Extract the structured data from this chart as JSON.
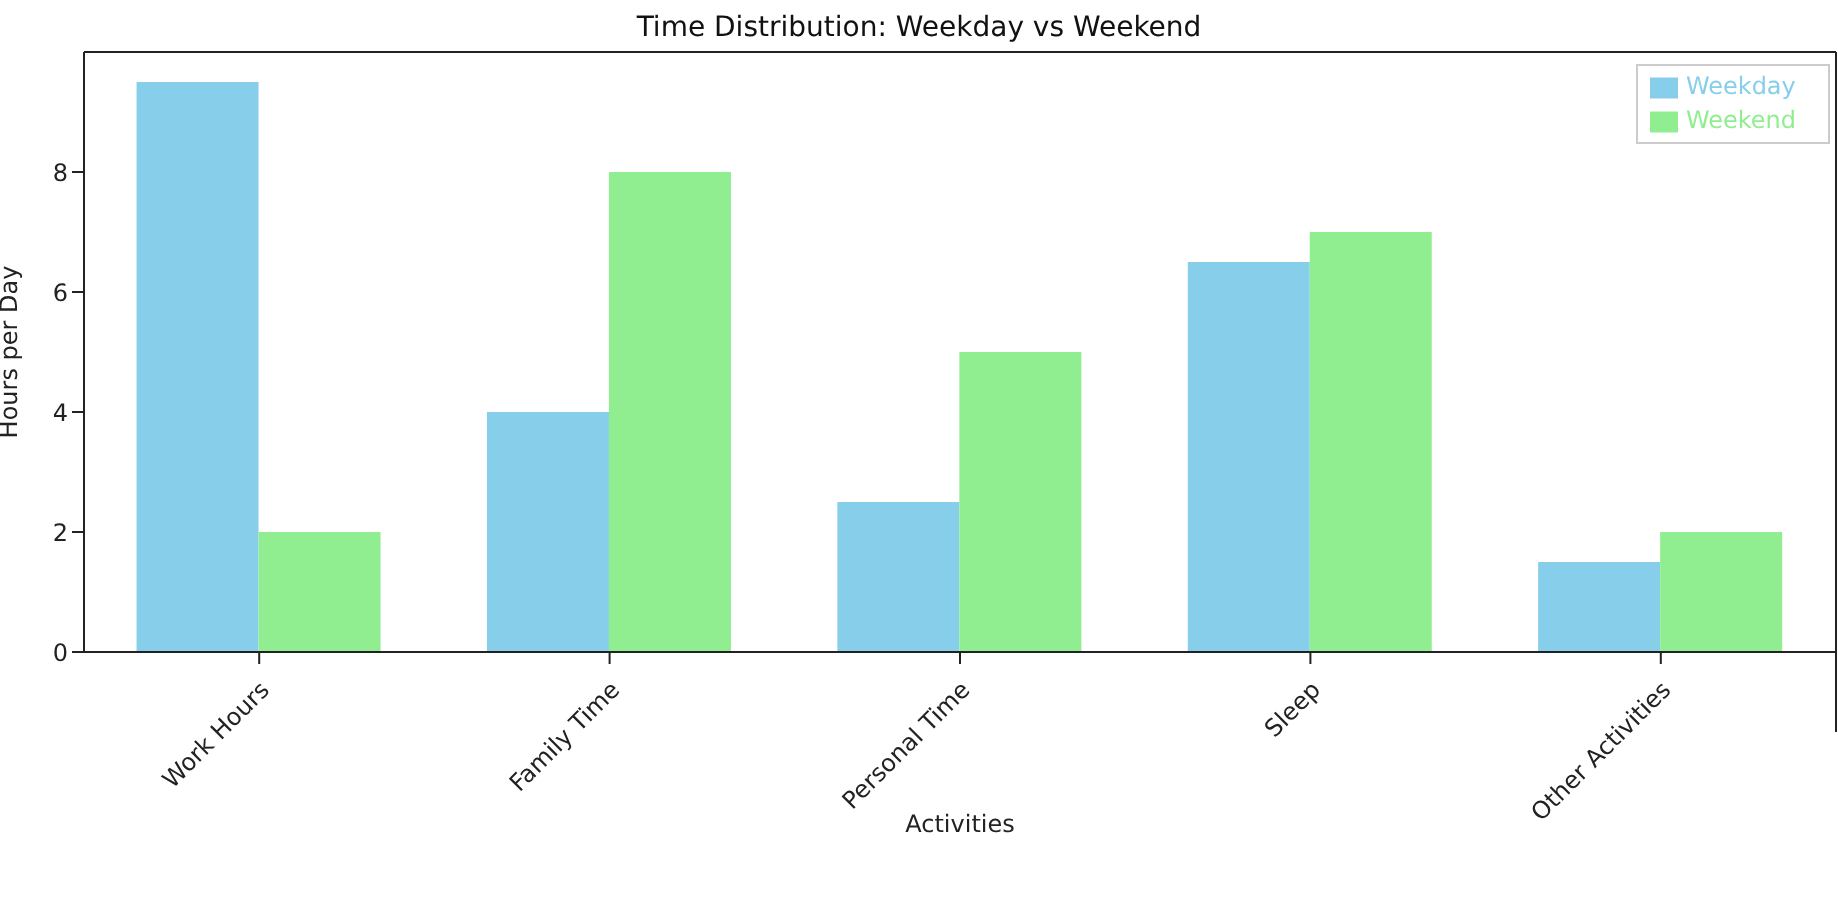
{
  "chart_data": {
    "type": "bar",
    "title": "Time Distribution: Weekday vs Weekend",
    "xlabel": "Activities",
    "ylabel": "Hours per Day",
    "categories": [
      "Work Hours",
      "Family Time",
      "Personal Time",
      "Sleep",
      "Other Activities"
    ],
    "series": [
      {
        "name": "Weekday",
        "color": "#87ceeb",
        "values": [
          9.5,
          4,
          2.5,
          6.5,
          1.5
        ]
      },
      {
        "name": "Weekend",
        "color": "#90ee90",
        "values": [
          2,
          8,
          5,
          7,
          2
        ]
      }
    ],
    "ylim": [
      0,
      10
    ],
    "yticks": [
      0,
      2,
      4,
      6,
      8
    ],
    "grid": false,
    "legend": "top right"
  }
}
